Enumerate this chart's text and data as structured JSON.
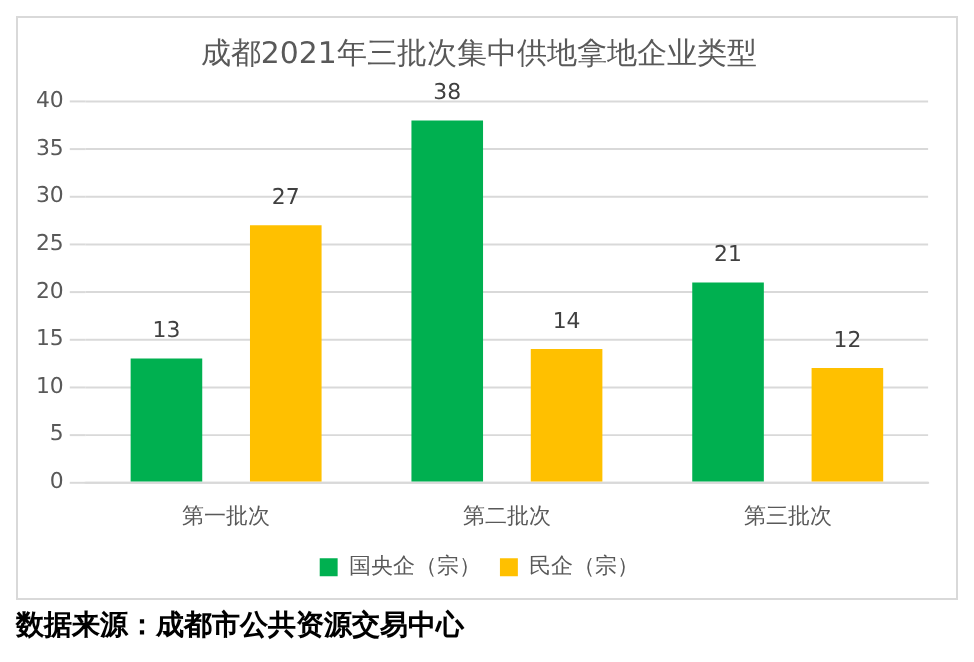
{
  "chart_data": {
    "type": "bar",
    "title": "成都2021年三批次集中供地拿地企业类型",
    "categories": [
      "第一批次",
      "第二批次",
      "第三批次"
    ],
    "series": [
      {
        "name": "国央企（宗）",
        "color": "#00b050",
        "values": [
          13,
          38,
          21
        ]
      },
      {
        "name": "民企（宗）",
        "color": "#ffc000",
        "values": [
          27,
          14,
          12
        ]
      }
    ],
    "ylim": [
      0,
      40
    ],
    "yticks": [
      0,
      5,
      10,
      15,
      20,
      25,
      30,
      35,
      40
    ],
    "grid": "y",
    "legend": "bottom",
    "data_labels": true,
    "annotations": [
      "数据来源：成都市公共资源交易中心"
    ]
  }
}
